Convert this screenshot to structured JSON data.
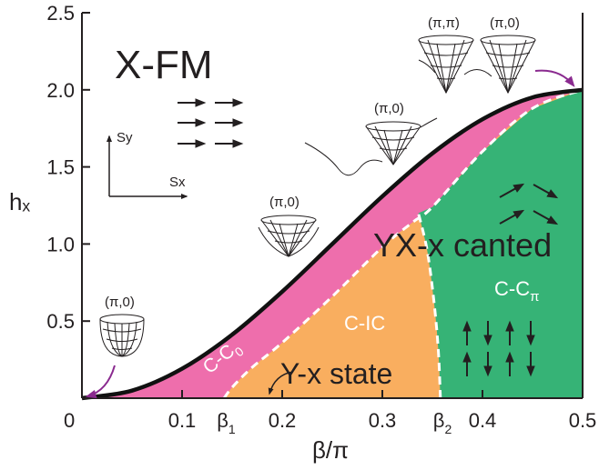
{
  "chart_data": {
    "type": "area",
    "xlabel": "β/π",
    "ylabel": "hₓ",
    "xlim": [
      0,
      0.5
    ],
    "ylim": [
      0,
      2.5
    ],
    "x_ticks": [
      {
        "value": 0,
        "label": "0"
      },
      {
        "value": 0.1,
        "label": "0.1"
      },
      {
        "value": 0.2,
        "label": "0.2"
      },
      {
        "value": 0.3,
        "label": "0.3"
      },
      {
        "value": 0.4,
        "label": "0.4"
      },
      {
        "value": 0.5,
        "label": "0.5"
      }
    ],
    "beta_markers": [
      {
        "value": 0.142,
        "label": "β",
        "sub": "1"
      },
      {
        "value": 0.358,
        "label": "β",
        "sub": "2"
      }
    ],
    "y_ticks": [
      {
        "value": 0.5,
        "label": "0.5"
      },
      {
        "value": 1.0,
        "label": "1.0"
      },
      {
        "value": 1.5,
        "label": "1.5"
      },
      {
        "value": 2.0,
        "label": "2.0"
      },
      {
        "value": 2.5,
        "label": "2.5"
      }
    ],
    "colors": {
      "c_c0": "#ee6eac",
      "c_ic": "#f9ae5f",
      "c_cpi": "#36b376",
      "boundary": "#111111",
      "phase_line": "#ffffff",
      "pointer_arrow": "#8a2a8f"
    },
    "saturation_boundary": {
      "x": [
        0,
        0.05,
        0.1,
        0.15,
        0.2,
        0.25,
        0.3,
        0.35,
        0.4,
        0.45,
        0.5
      ],
      "y": [
        0,
        0.049,
        0.191,
        0.412,
        0.691,
        1.0,
        1.309,
        1.588,
        1.809,
        1.951,
        2.0
      ]
    },
    "cc0_inner_boundary": {
      "x": [
        0.142,
        0.15,
        0.17,
        0.2,
        0.25,
        0.3,
        0.33,
        0.35,
        0.4,
        0.45,
        0.5
      ],
      "y": [
        0,
        0.07,
        0.2,
        0.36,
        0.66,
        0.98,
        1.14,
        1.24,
        1.6,
        1.88,
        2.0
      ]
    },
    "ic_cpi_boundary": {
      "x": [
        0.358,
        0.356,
        0.352,
        0.345,
        0.336
      ],
      "y": [
        0,
        0.3,
        0.6,
        0.95,
        1.2
      ]
    },
    "labels": {
      "xfm": "X-FM",
      "yx_canted": "YX-x canted",
      "y_x_state": "Y-x state",
      "c_ic": "C-IC",
      "c_cpi_main": "C-C",
      "c_cpi_sub": "π",
      "c_c0_main": "C-C",
      "c_c0_sub": "0"
    },
    "axes_inset": {
      "sy": "Sy",
      "sx": "Sx"
    },
    "dispersion_labels": [
      {
        "id": "d1",
        "text": "(π,0)"
      },
      {
        "id": "d2",
        "text": "(π,0)"
      },
      {
        "id": "d3",
        "text": "(π,0)"
      },
      {
        "id": "d4a",
        "text": "(π,π)"
      },
      {
        "id": "d4b",
        "text": "(π,0)"
      }
    ]
  }
}
